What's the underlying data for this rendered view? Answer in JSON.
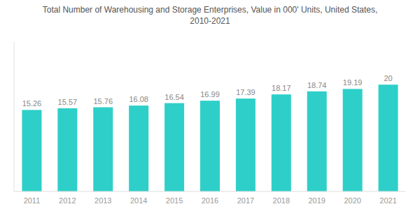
{
  "chart_data": {
    "type": "bar",
    "title": "Total Number of Warehousing and Storage Enterprises, Value in 000' Units, United States,\n2010-2021",
    "categories": [
      "2011",
      "2012",
      "2013",
      "2014",
      "2015",
      "2016",
      "2017",
      "2018",
      "2019",
      "2020",
      "2021"
    ],
    "values": [
      15.26,
      15.57,
      15.76,
      16.08,
      16.54,
      16.99,
      17.39,
      18.17,
      18.74,
      19.19,
      20
    ],
    "color": "#2ECFC9",
    "ylim": [
      0,
      28
    ],
    "data_labels": true,
    "tick_labels": "x",
    "grid": false
  }
}
